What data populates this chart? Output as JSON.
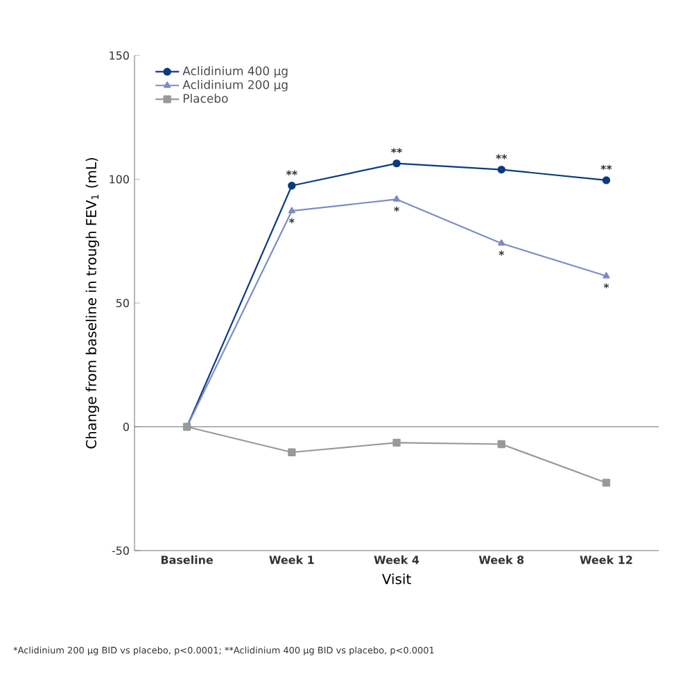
{
  "chart_data": {
    "type": "line",
    "xlabel": "Visit",
    "ylabel": "Change from baseline in trough FEV$_{1}$ (mL)",
    "categories": [
      "Baseline",
      "Week 1",
      "Week 4",
      "Week 8",
      "Week 12"
    ],
    "series": [
      {
        "name": "Aclidinium 400 µg",
        "color": "#0b3a80",
        "marker": "circle",
        "values": [
          0,
          97.4,
          106.4,
          103.9,
          99.6
        ]
      },
      {
        "name": "Aclidinium 200 µg",
        "color": "#7b8cc4",
        "marker": "triangle",
        "values": [
          0,
          87.2,
          91.9,
          74.1,
          60.9
        ]
      },
      {
        "name": "Placebo",
        "color": "#999999",
        "marker": "square",
        "values": [
          0,
          -10.3,
          -6.4,
          -7.0,
          -22.6
        ]
      }
    ],
    "ylim": [
      -50,
      150
    ],
    "yticks": [
      -50,
      0,
      50,
      100,
      150
    ],
    "ref_lines": [
      {
        "axis": "y",
        "value": 0
      }
    ],
    "legend": "top left",
    "grid": false,
    "line_style": "solid",
    "annotations": [
      {
        "text": "**",
        "x": "Week 1",
        "y": 97.4
      },
      {
        "text": "**",
        "x": "Week 4",
        "y": 106.4
      },
      {
        "text": "**",
        "x": "Week 8",
        "y": 103.9
      },
      {
        "text": "**",
        "x": "Week 12",
        "y": 99.6
      },
      {
        "text": "*",
        "x": "Week 1",
        "y": 87.2
      },
      {
        "text": "*",
        "x": "Week 4",
        "y": 91.9
      },
      {
        "text": "*",
        "x": "Week 8",
        "y": 74.1
      },
      {
        "text": "*",
        "x": "Week 12",
        "y": 60.9
      },
      "*Aclidinium 200 µg BID vs placebo, p<0.0001; **Aclidinium 400 µg BID vs placebo, p<0.0001"
    ]
  }
}
